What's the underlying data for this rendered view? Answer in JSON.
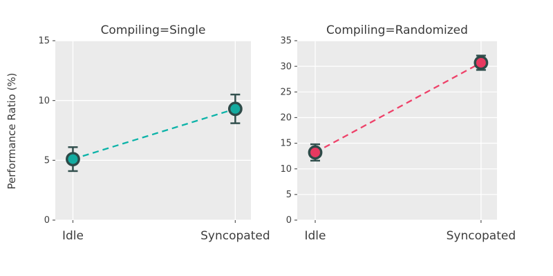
{
  "figure": {
    "background": "#ffffff",
    "panel_background": "#ebebeb",
    "grid_color": "#ffffff",
    "axis_text_color": "#3d3d3d",
    "tick_mark_color": "#555555",
    "ylabel": "Performance Ratio (%)"
  },
  "chart_data": [
    {
      "type": "line",
      "title": "Compiling=Single",
      "categories": [
        "Idle",
        "Syncopated"
      ],
      "xlabel": "",
      "ylabel": "Performance Ratio (%)",
      "ylim": [
        0,
        15
      ],
      "yticks": [
        0,
        5,
        10,
        15
      ],
      "grid": true,
      "legend": "none",
      "line_style": "dashed",
      "marker": "circle",
      "series": [
        {
          "name": "Performance Ratio (%)",
          "values": [
            5.1,
            9.3
          ],
          "err_low": [
            4.1,
            8.1
          ],
          "err_high": [
            6.1,
            10.5
          ],
          "line_color": "#0cb3a8",
          "marker_fill": "#14aba0",
          "marker_edge": "#2e4a48",
          "errorbar_color": "#32504e"
        }
      ]
    },
    {
      "type": "line",
      "title": "Compiling=Randomized",
      "categories": [
        "Idle",
        "Syncopated"
      ],
      "xlabel": "",
      "ylabel": "Performance Ratio (%)",
      "ylim": [
        0,
        35
      ],
      "yticks": [
        0,
        5,
        10,
        15,
        20,
        25,
        30,
        35
      ],
      "grid": true,
      "legend": "none",
      "line_style": "dashed",
      "marker": "circle",
      "series": [
        {
          "name": "Performance Ratio (%)",
          "values": [
            13.2,
            30.7
          ],
          "err_low": [
            11.6,
            29.3
          ],
          "err_high": [
            14.8,
            32.1
          ],
          "line_color": "#ee4169",
          "marker_fill": "#e73960",
          "marker_edge": "#2e4a48",
          "errorbar_color": "#32504e"
        }
      ]
    }
  ]
}
